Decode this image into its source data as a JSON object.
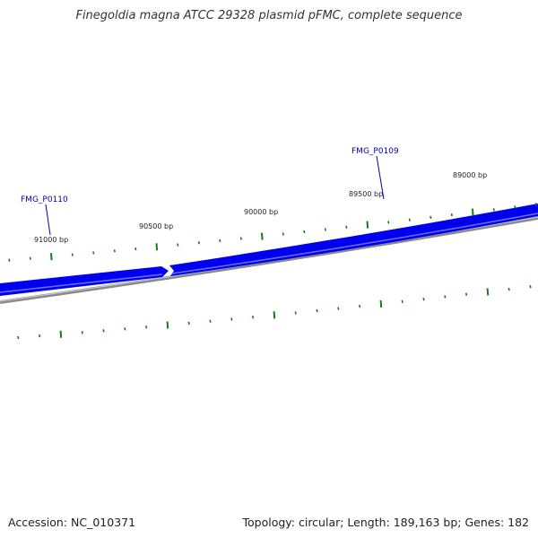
{
  "title": "Finegoldia magna ATCC 29328 plasmid pFMC, complete sequence",
  "accession": "Accession: NC_010371",
  "summary": "Topology: circular; Length: 189,163 bp; Genes: 182",
  "ticks": [
    {
      "label": "91000 bp",
      "bp": 91000
    },
    {
      "label": "90500 bp",
      "bp": 90500
    },
    {
      "label": "90000 bp",
      "bp": 90000
    },
    {
      "label": "89500 bp",
      "bp": 89500
    },
    {
      "label": "89000 bp",
      "bp": 89000
    }
  ],
  "genes": [
    {
      "label": "FMG_P0110"
    },
    {
      "label": "FMG_P0109"
    }
  ],
  "colors": {
    "gene": "#0000ee",
    "gene_label": "#0000aa",
    "backbone": "#808080",
    "tick": "#1a7a1a",
    "text": "#222222"
  }
}
